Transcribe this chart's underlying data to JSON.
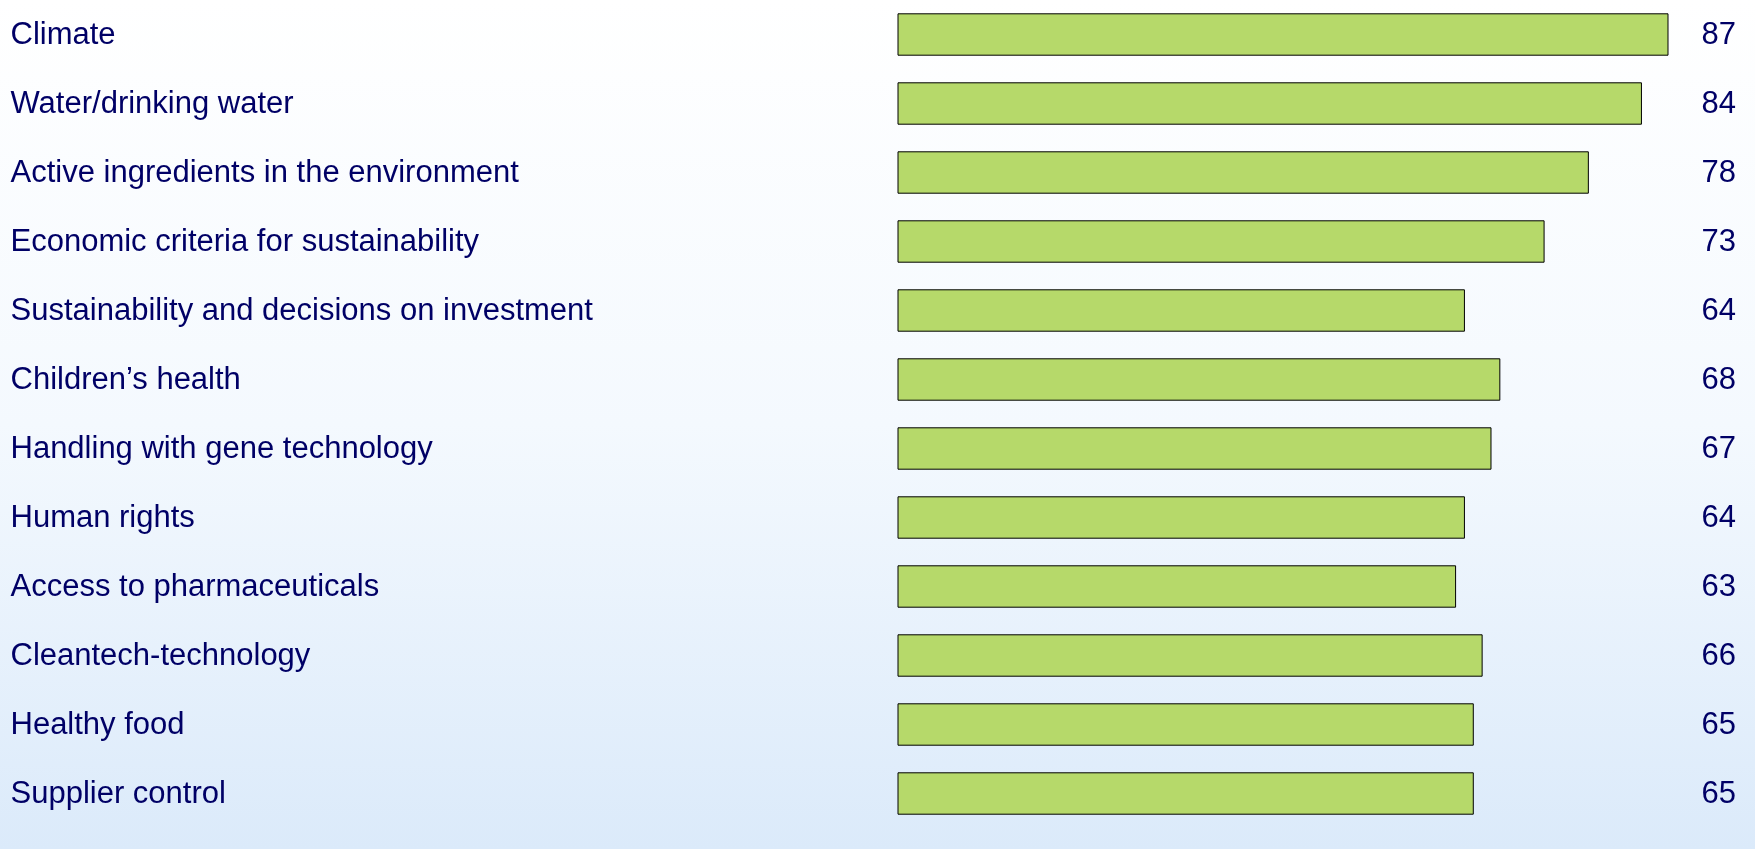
{
  "chart_data": {
    "type": "bar",
    "orientation": "horizontal",
    "categories": [
      "Climate",
      "Water/drinking water",
      "Active ingredients in the environment",
      "Economic criteria for sustainability",
      "Sustainability and decisions on investment",
      "Children’s health",
      "Handling with gene technology",
      "Human rights",
      "Access to pharmaceuticals",
      "Cleantech-technology",
      "Healthy food",
      "Supplier control"
    ],
    "values": [
      87,
      84,
      78,
      73,
      64,
      68,
      67,
      64,
      63,
      66,
      65,
      65
    ],
    "color": "#b6d96a",
    "data_labels": true,
    "tick_labels": "y",
    "grid": false
  }
}
